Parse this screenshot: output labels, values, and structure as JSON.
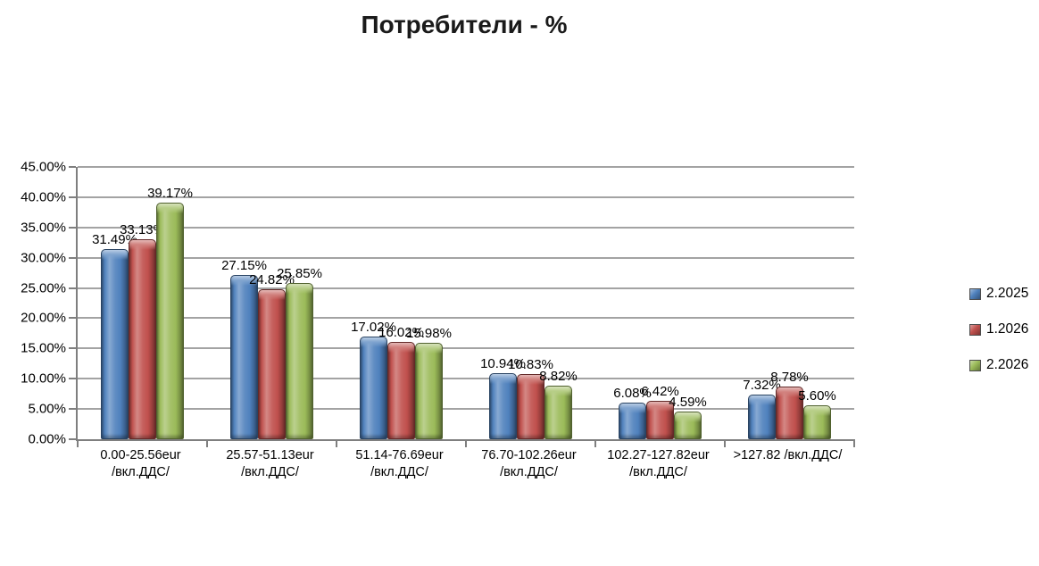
{
  "chart_data": {
    "type": "bar",
    "title": "Потребители - %",
    "categories": [
      "0.00-25.56eur\n/вкл.ДДС/",
      "25.57-51.13eur\n/вкл.ДДС/",
      "51.14-76.69eur\n/вкл.ДДС/",
      "76.70-102.26eur\n/вкл.ДДС/",
      "102.27-127.82eur\n/вкл.ДДС/",
      ">127.82 /вкл.ДДС/"
    ],
    "series": [
      {
        "name": "2.2025",
        "color": "#4F81BD",
        "values": [
          31.49,
          27.15,
          17.02,
          10.94,
          6.08,
          7.32
        ]
      },
      {
        "name": "1.2026",
        "color": "#C0504D",
        "values": [
          33.13,
          24.82,
          16.02,
          10.83,
          6.42,
          8.78
        ]
      },
      {
        "name": "2.2026",
        "color": "#9BBB59",
        "values": [
          39.17,
          25.85,
          15.98,
          8.82,
          4.59,
          5.6
        ]
      }
    ],
    "data_label_format": "percent-2dp",
    "y_axis": {
      "min": 0,
      "max": 45,
      "step": 5,
      "tick_labels": [
        "0.00%",
        "5.00%",
        "10.00%",
        "15.00%",
        "20.00%",
        "25.00%",
        "30.00%",
        "35.00%",
        "40.00%",
        "45.00%"
      ]
    },
    "grid": true,
    "legend_position": "right"
  }
}
